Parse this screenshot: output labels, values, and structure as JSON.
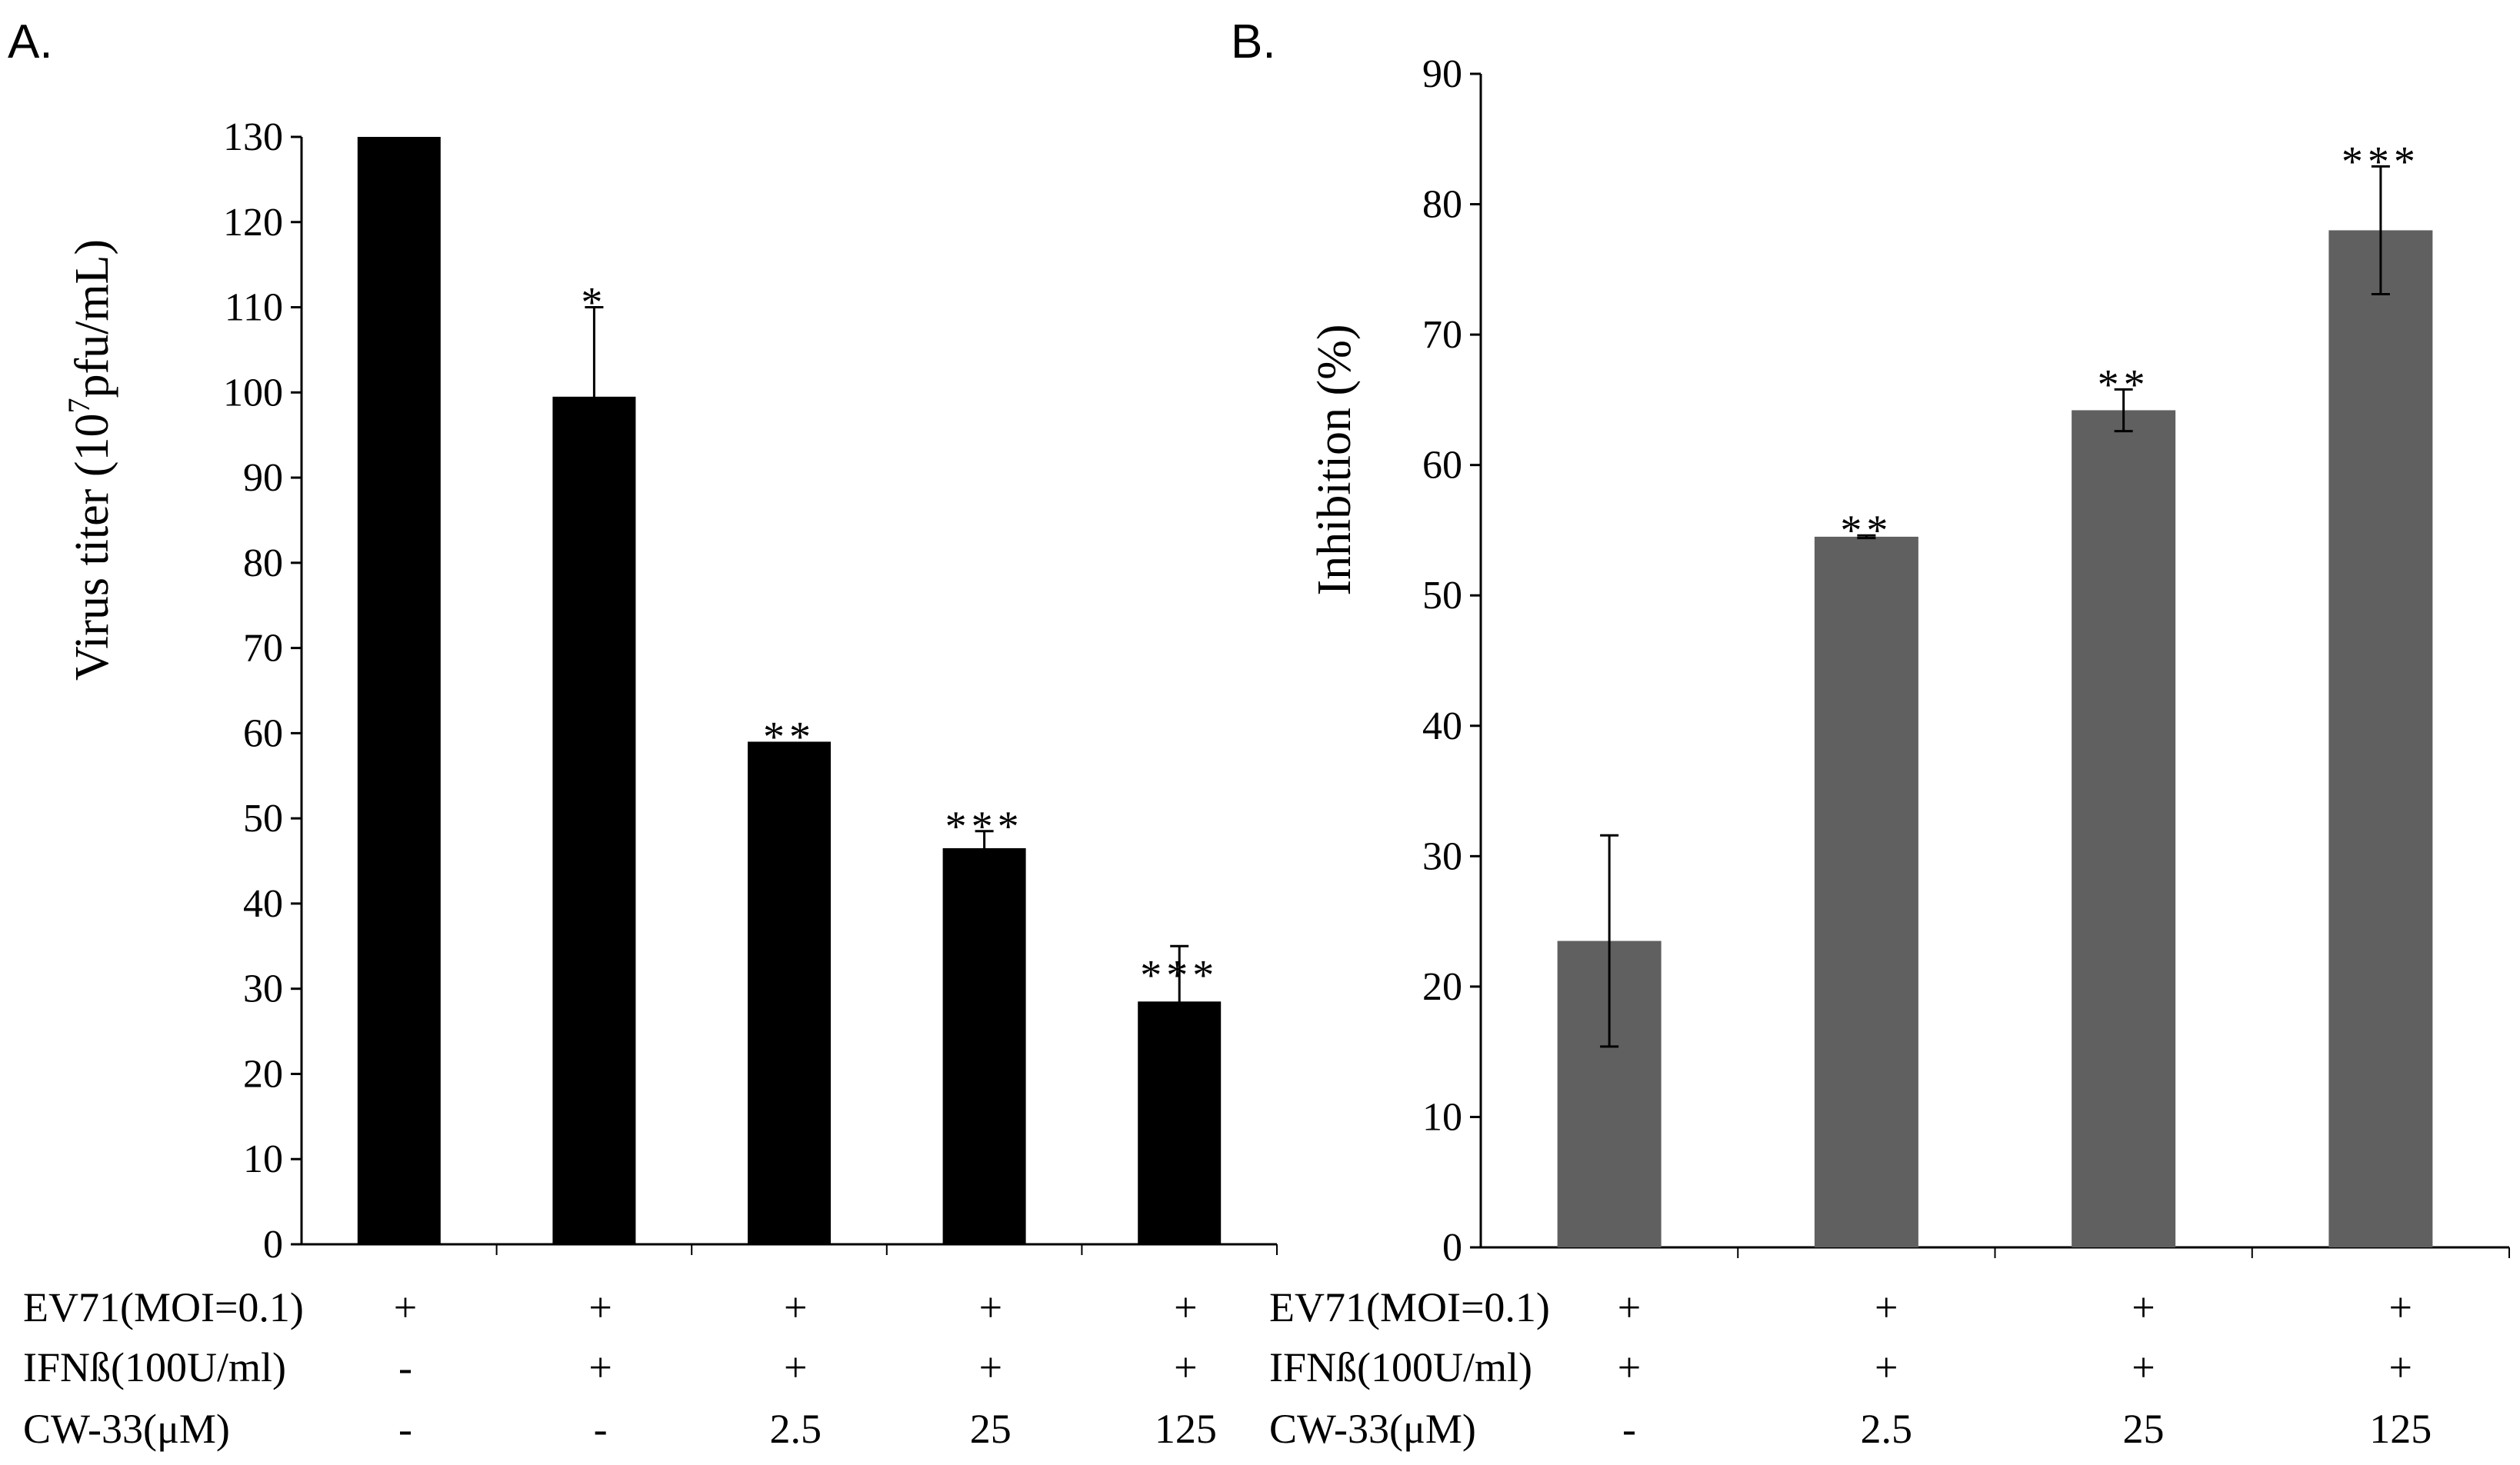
{
  "chart_data": [
    {
      "type": "bar",
      "panel_label": "A.",
      "title": "",
      "ylabel_prefix": "Virus titer (10",
      "ylabel_superscript": "7",
      "ylabel_suffix": "pfu/mL)",
      "ylim": [
        0,
        130
      ],
      "yticks": [
        "0",
        "10",
        "20",
        "30",
        "40",
        "50",
        "60",
        "70",
        "80",
        "90",
        "100",
        "110",
        "120",
        "130"
      ],
      "categories": [
        "EV71",
        "EV71+IFNβ",
        "EV71+IFNβ+CW-33 2.5",
        "EV71+IFNβ+CW-33 25",
        "EV71+IFNβ+CW-33 125"
      ],
      "values": [
        130,
        99.5,
        59,
        46.5,
        28.5
      ],
      "error": [
        0,
        10.5,
        0,
        2,
        6.5
      ],
      "significance": [
        "",
        "*",
        "**",
        "***",
        "***"
      ],
      "bar_color": "#000000",
      "treatment_rows": [
        {
          "label": "EV71(MOI=0.1)",
          "values": [
            "+",
            "+",
            "+",
            "+",
            "+"
          ]
        },
        {
          "label": "IFNß(100U/ml)",
          "values": [
            "-",
            "+",
            "+",
            "+",
            "+"
          ]
        },
        {
          "label": "CW-33(μM)",
          "values": [
            "-",
            "-",
            "2.5",
            "25",
            "125"
          ]
        }
      ]
    },
    {
      "type": "bar",
      "panel_label": "B.",
      "title": "",
      "ylabel": "Inhibition (%)",
      "ylim": [
        0,
        90
      ],
      "yticks": [
        "0",
        "10",
        "20",
        "30",
        "40",
        "50",
        "60",
        "70",
        "80",
        "90"
      ],
      "categories": [
        "EV71+IFNβ",
        "EV71+IFNβ+CW-33 2.5",
        "EV71+IFNβ+CW-33 25",
        "EV71+IFNβ+CW-33 125"
      ],
      "values": [
        23.5,
        54.5,
        64.2,
        78
      ],
      "error": [
        8.1,
        0.1,
        1.6,
        4.9
      ],
      "significance": [
        "",
        "**",
        "**",
        "***"
      ],
      "bar_color": "#606060",
      "treatment_rows": [
        {
          "label": "EV71(MOI=0.1)",
          "values": [
            "+",
            "+",
            "+",
            "+"
          ]
        },
        {
          "label": "IFNß(100U/ml)",
          "values": [
            "+",
            "+",
            "+",
            "+"
          ]
        },
        {
          "label": "CW-33(μM)",
          "values": [
            "-",
            "2.5",
            "25",
            "125"
          ]
        }
      ]
    }
  ]
}
